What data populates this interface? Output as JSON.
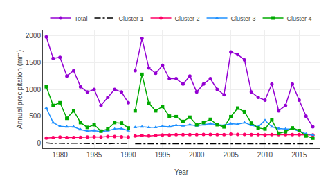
{
  "chart_data": {
    "type": "line",
    "x_label": "Year",
    "y_label": "Annual precipitation (mm)",
    "x": [
      1978,
      1979,
      1980,
      1981,
      1982,
      1983,
      1984,
      1985,
      1986,
      1987,
      1988,
      1989,
      1990,
      null,
      1991,
      1992,
      1993,
      1994,
      1995,
      1996,
      1997,
      1998,
      1999,
      2000,
      2001,
      2002,
      2003,
      2004,
      2005,
      2006,
      2007,
      2008,
      2009,
      2010,
      2011,
      2012,
      2013,
      2014,
      2015,
      2016,
      2017
    ],
    "series": [
      {
        "name": "Total",
        "color": "#9400D3",
        "marker": "circle",
        "line_style": "solid",
        "values": [
          1980,
          1580,
          1600,
          1250,
          1350,
          1050,
          950,
          1000,
          700,
          850,
          1000,
          950,
          750,
          null,
          1350,
          1950,
          1400,
          1300,
          1450,
          1200,
          1200,
          1100,
          1250,
          950,
          1100,
          1200,
          1000,
          900,
          1700,
          1650,
          1550,
          950,
          850,
          800,
          1100,
          600,
          700,
          1100,
          800,
          500,
          300
        ]
      },
      {
        "name": "Cluster 1",
        "color": "#000000",
        "marker": "none",
        "line_style": "dashdot",
        "values": [
          0,
          -10,
          -5,
          -10,
          -5,
          -10,
          -15,
          -15,
          -10,
          -15,
          -10,
          -10,
          -10,
          null,
          -15,
          -15,
          -15,
          -15,
          -15,
          -15,
          -15,
          -15,
          -15,
          -15,
          -15,
          -15,
          -15,
          -15,
          -15,
          -15,
          -15,
          -15,
          -15,
          -15,
          -15,
          -15,
          -15,
          -15,
          -15,
          -15,
          -15
        ]
      },
      {
        "name": "Cluster 2",
        "color": "#FF0066",
        "marker": "circle",
        "line_style": "solid",
        "values": [
          90,
          100,
          110,
          100,
          100,
          105,
          110,
          115,
          110,
          120,
          120,
          115,
          110,
          null,
          130,
          140,
          130,
          140,
          150,
          150,
          155,
          155,
          155,
          155,
          160,
          160,
          155,
          155,
          165,
          160,
          160,
          155,
          155,
          150,
          155,
          155,
          155,
          155,
          155,
          150,
          150
        ]
      },
      {
        "name": "Cluster 3",
        "color": "#1E90FF",
        "marker": "triangle-up",
        "line_style": "solid",
        "values": [
          650,
          380,
          310,
          300,
          300,
          250,
          220,
          230,
          210,
          230,
          260,
          270,
          230,
          null,
          290,
          300,
          290,
          290,
          310,
          300,
          330,
          320,
          340,
          320,
          340,
          360,
          340,
          330,
          360,
          350,
          380,
          330,
          300,
          420,
          300,
          270,
          260,
          260,
          220,
          170,
          150
        ]
      },
      {
        "name": "Cluster 4",
        "color": "#00AA00",
        "marker": "square",
        "line_style": "solid",
        "values": [
          1050,
          700,
          750,
          460,
          600,
          380,
          290,
          340,
          220,
          260,
          380,
          370,
          280,
          null,
          600,
          1280,
          740,
          600,
          680,
          500,
          490,
          400,
          480,
          340,
          380,
          440,
          340,
          300,
          490,
          650,
          580,
          370,
          280,
          260,
          430,
          180,
          210,
          280,
          230,
          130,
          90
        ]
      }
    ],
    "xlim": [
      1977.5,
      2018
    ],
    "xticks": [
      1980,
      1985,
      1990,
      1995,
      2000,
      2005,
      2010,
      2015
    ],
    "ylim": [
      -100,
      2100
    ],
    "yticks": [
      0,
      500,
      1000,
      1500,
      2000
    ],
    "grid": true,
    "legend": "top"
  }
}
